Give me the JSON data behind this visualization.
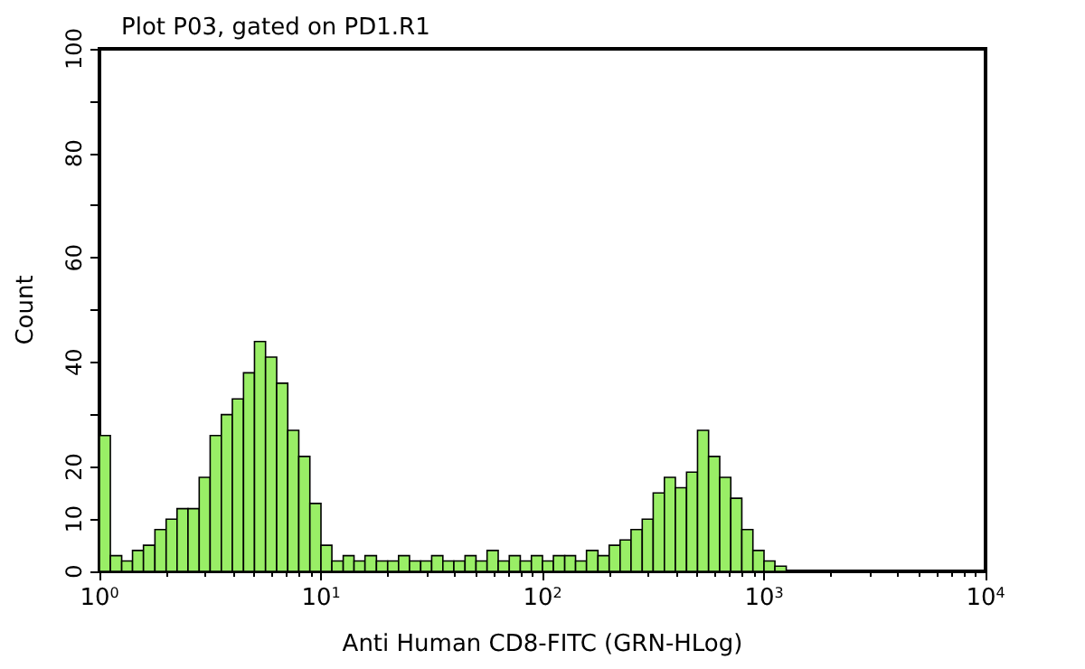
{
  "chart_data": {
    "type": "histogram",
    "title": "Plot P03, gated on PD1.R1",
    "xlabel": "Anti Human CD8-FITC (GRN-HLog)",
    "ylabel": "Count",
    "log": "x",
    "color": "#99ee66",
    "bins": [
      1,
      1.12,
      1.26,
      1.41,
      1.58,
      1.78,
      2.0,
      2.24,
      2.51,
      2.82,
      3.16,
      3.55,
      3.98,
      4.47,
      5.01,
      5.62,
      6.31,
      7.08,
      7.94,
      8.91,
      10,
      11.2,
      12.6,
      14.1,
      15.8,
      17.8,
      20.0,
      22.4,
      25.1,
      28.2,
      31.6,
      35.5,
      39.8,
      44.7,
      50.1,
      56.2,
      63.1,
      70.8,
      79.4,
      89.1,
      100,
      112,
      126,
      141,
      158,
      178,
      200,
      224,
      251,
      282,
      316,
      355,
      398,
      447,
      501,
      562,
      631,
      708,
      794,
      891,
      1000,
      1120,
      1260
    ],
    "values": [
      26,
      3,
      2,
      4,
      5,
      8,
      10,
      12,
      12,
      18,
      26,
      30,
      33,
      38,
      44,
      41,
      36,
      27,
      22,
      13,
      5,
      2,
      3,
      2,
      3,
      2,
      2,
      3,
      2,
      2,
      3,
      2,
      2,
      3,
      2,
      4,
      2,
      3,
      2,
      3,
      2,
      3,
      3,
      2,
      4,
      3,
      5,
      6,
      8,
      10,
      15,
      18,
      16,
      19,
      27,
      22,
      18,
      14,
      8,
      4,
      2,
      1
    ],
    "xlim": [
      1,
      10000
    ],
    "ylim": [
      0,
      100
    ],
    "xticks": [
      {
        "value": 1,
        "label": "10$^{0}$"
      },
      {
        "value": 10,
        "label": "10$^{1}$"
      },
      {
        "value": 100,
        "label": "10$^{2}$"
      },
      {
        "value": 1000,
        "label": "10$^{3}$"
      },
      {
        "value": 10000,
        "label": "10$^{4}$"
      }
    ],
    "yticks": [
      0,
      10,
      20,
      {
        "value": 30,
        "label": null
      },
      40,
      {
        "value": 50,
        "label": null
      },
      60,
      {
        "value": 70,
        "label": null
      },
      80,
      {
        "value": 90,
        "label": null
      },
      100
    ]
  }
}
